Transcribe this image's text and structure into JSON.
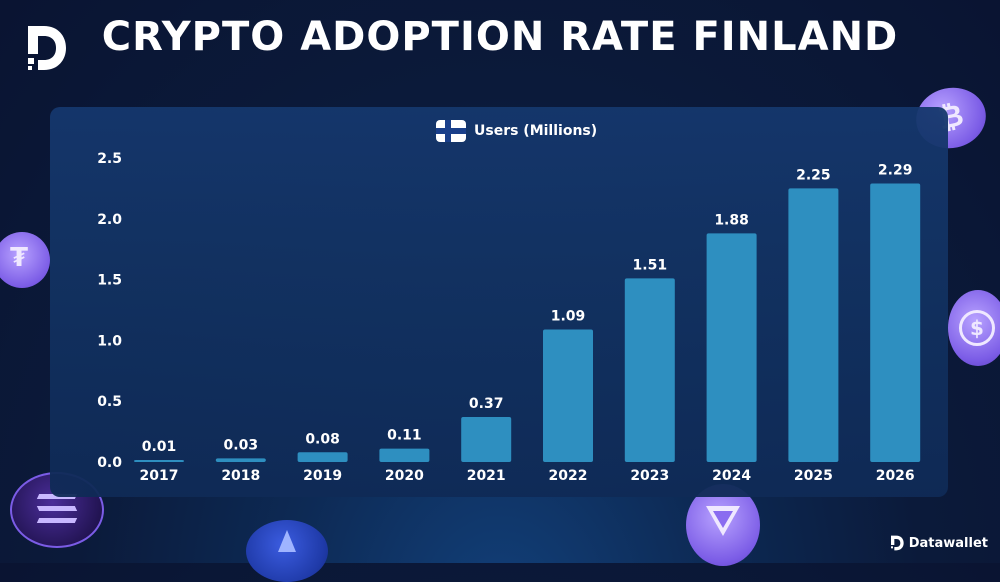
{
  "title": "CRYPTO ADOPTION RATE FINLAND",
  "brand": "Datawallet",
  "colors": {
    "bar": "#2e8fc0",
    "axis_text": "#ffffff",
    "accent_purple": "#8a6cf0"
  },
  "chart_data": {
    "type": "bar",
    "categories": [
      "2017",
      "2018",
      "2019",
      "2020",
      "2021",
      "2022",
      "2023",
      "2024",
      "2025",
      "2026"
    ],
    "series": [
      {
        "name": "Users (Millions)",
        "values": [
          0.01,
          0.03,
          0.08,
          0.11,
          0.37,
          1.09,
          1.51,
          1.88,
          2.25,
          2.29
        ]
      }
    ],
    "data_labels": [
      "0.01",
      "0.03",
      "0.08",
      "0.11",
      "0.37",
      "1.09",
      "1.51",
      "1.88",
      "2.25",
      "2.29"
    ],
    "yticks": [
      "0.0",
      "0.5",
      "1.0",
      "1.5",
      "2.0",
      "2.5"
    ],
    "ylim": [
      0,
      2.5
    ],
    "grid": false,
    "legend": "top-center"
  }
}
